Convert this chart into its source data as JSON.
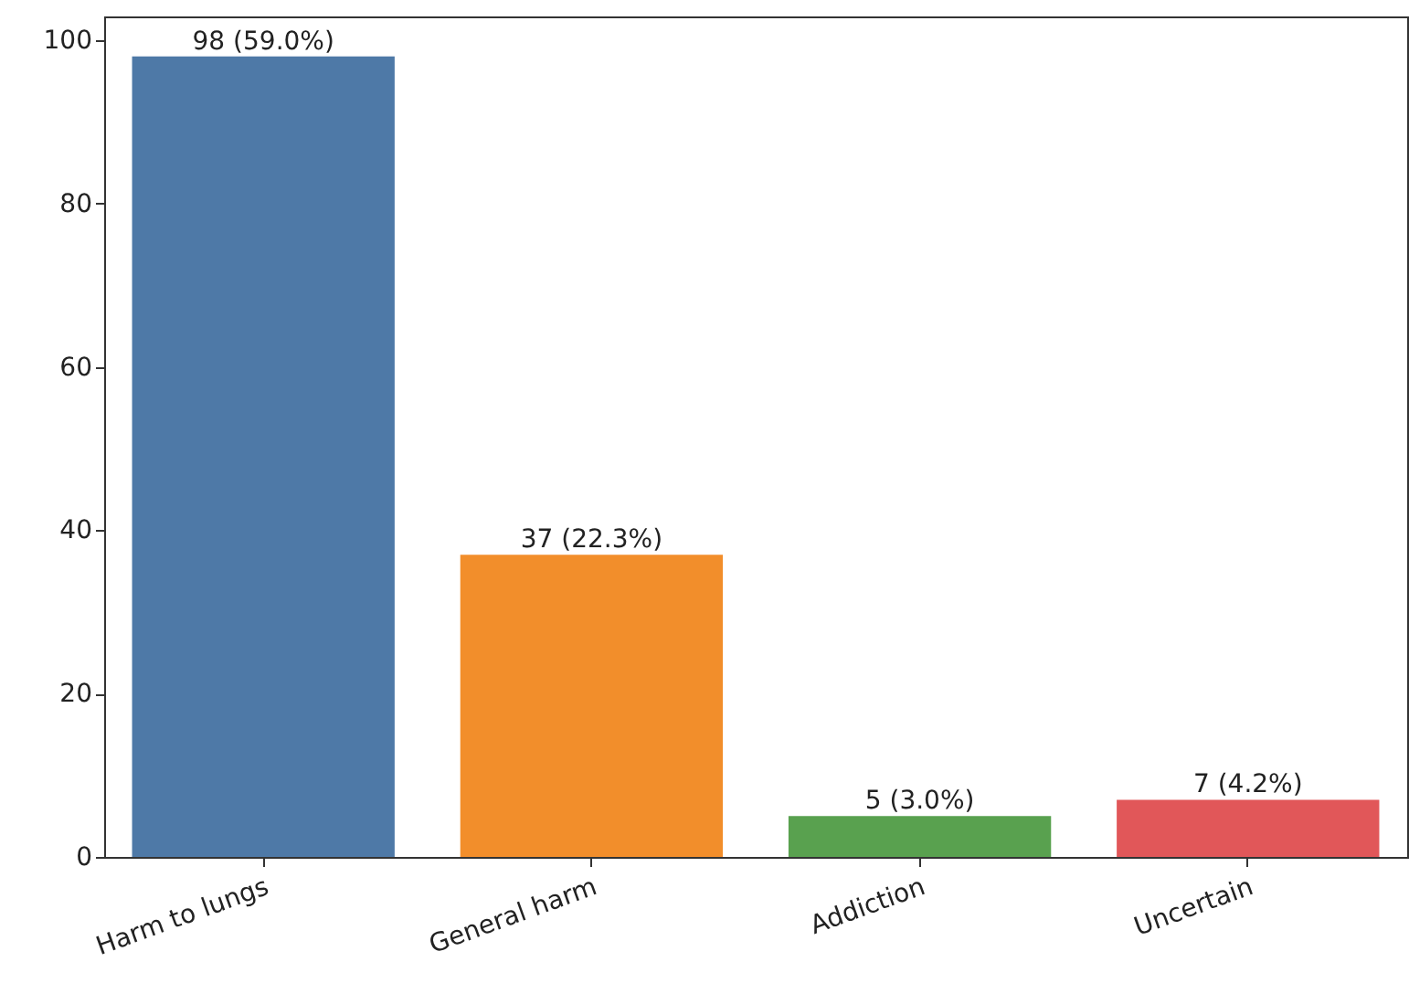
{
  "chart_data": {
    "type": "bar",
    "categories": [
      "Harm to lungs",
      "General harm",
      "Addiction",
      "Uncertain"
    ],
    "values": [
      98,
      37,
      5,
      7
    ],
    "colors": [
      "#4e79a7",
      "#f28e2b",
      "#59a14f",
      "#e15759"
    ],
    "value_labels": [
      "98 (59.0%)",
      "37 (22.3%)",
      "5 (3.0%)",
      "7 (4.2%)"
    ],
    "ylim": [
      0,
      102.9
    ],
    "yticks": [
      0,
      20,
      40,
      60,
      80,
      100
    ],
    "grid": false
  }
}
